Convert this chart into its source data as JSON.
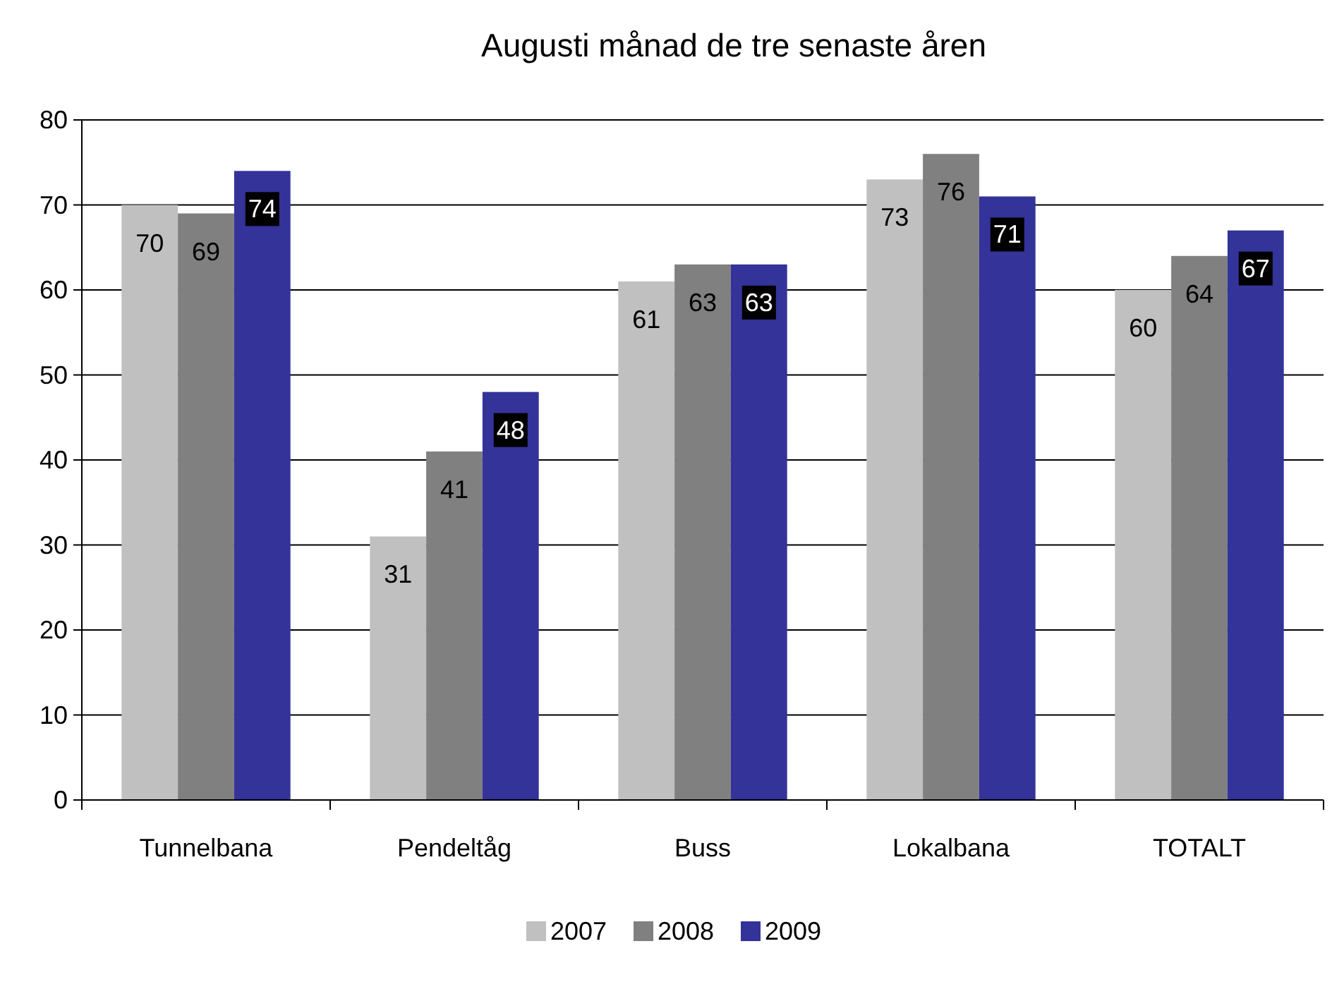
{
  "chart_data": {
    "type": "bar",
    "title": "Augusti månad de tre senaste åren",
    "categories": [
      "Tunnelbana",
      "Pendeltåg",
      "Buss",
      "Lokalbana",
      "TOTALT"
    ],
    "series": [
      {
        "name": "2007",
        "color": "#c0c0c0",
        "values": [
          70,
          31,
          61,
          73,
          60
        ]
      },
      {
        "name": "2008",
        "color": "#808080",
        "values": [
          69,
          41,
          63,
          76,
          64
        ]
      },
      {
        "name": "2009",
        "color": "#333399",
        "values": [
          74,
          48,
          63,
          71,
          67
        ]
      }
    ],
    "ylim": [
      0,
      80
    ],
    "yticks": [
      0,
      10,
      20,
      30,
      40,
      50,
      60,
      70,
      80
    ],
    "grid": "y",
    "legend": "bottom",
    "data_labels": true
  }
}
